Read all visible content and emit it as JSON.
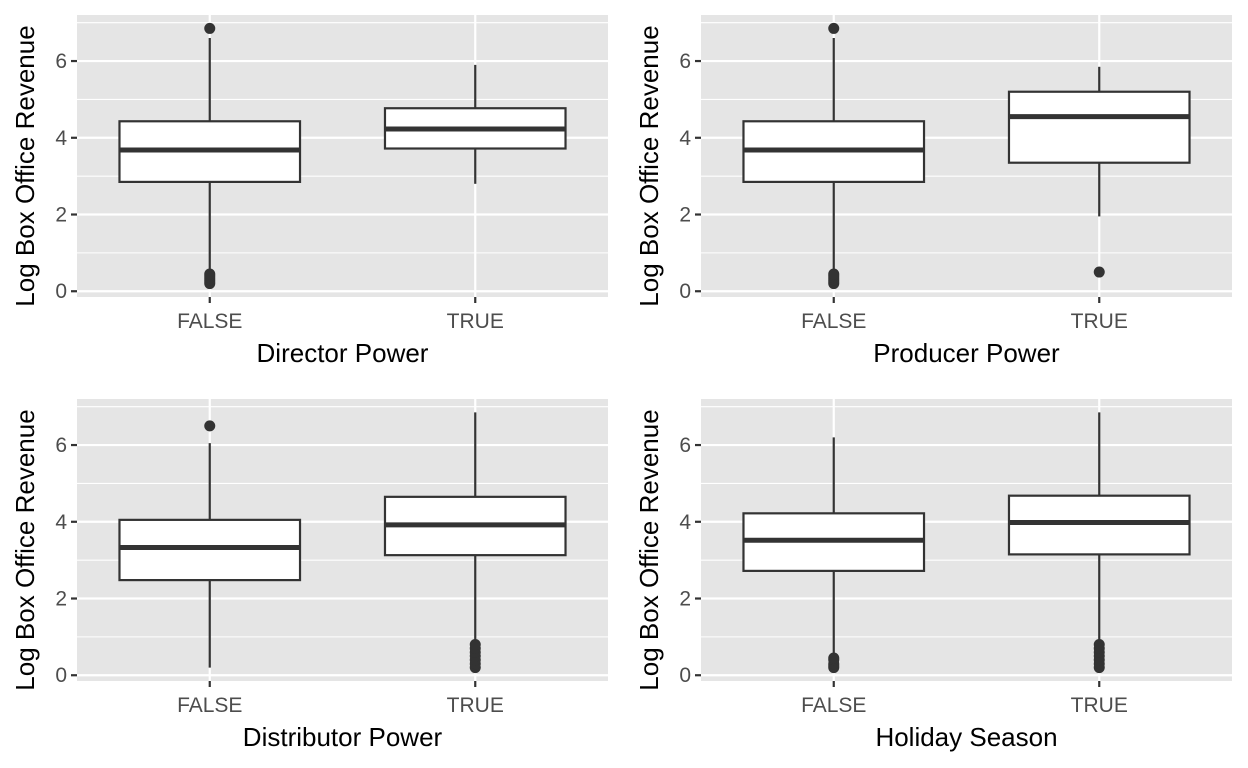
{
  "chart_data": [
    {
      "type": "box",
      "xlabel": "Director Power",
      "ylabel": "Log Box Office Revenue",
      "categories": [
        "FALSE",
        "TRUE"
      ],
      "ylim": [
        -0.15,
        7.2
      ],
      "yticks": [
        0,
        2,
        4,
        6
      ],
      "grid": true,
      "boxes": [
        {
          "category": "FALSE",
          "lower_whisker": 0.4,
          "q1": 2.85,
          "median": 3.68,
          "q3": 4.43,
          "upper_whisker": 6.6,
          "outliers": [
            6.85,
            0.2,
            0.25,
            0.3,
            0.35,
            0.4,
            0.45
          ]
        },
        {
          "category": "TRUE",
          "lower_whisker": 2.8,
          "q1": 3.72,
          "median": 4.23,
          "q3": 4.77,
          "upper_whisker": 5.9,
          "outliers": []
        }
      ]
    },
    {
      "type": "box",
      "xlabel": "Producer Power",
      "ylabel": "Log Box Office Revenue",
      "categories": [
        "FALSE",
        "TRUE"
      ],
      "ylim": [
        -0.15,
        7.2
      ],
      "yticks": [
        0,
        2,
        4,
        6
      ],
      "grid": true,
      "boxes": [
        {
          "category": "FALSE",
          "lower_whisker": 0.4,
          "q1": 2.85,
          "median": 3.68,
          "q3": 4.43,
          "upper_whisker": 6.6,
          "outliers": [
            6.85,
            0.2,
            0.25,
            0.3,
            0.35,
            0.4,
            0.45
          ]
        },
        {
          "category": "TRUE",
          "lower_whisker": 1.95,
          "q1": 3.35,
          "median": 4.55,
          "q3": 5.2,
          "upper_whisker": 5.85,
          "outliers": [
            0.5
          ]
        }
      ]
    },
    {
      "type": "box",
      "xlabel": "Distributor Power",
      "ylabel": "Log Box Office Revenue",
      "categories": [
        "FALSE",
        "TRUE"
      ],
      "ylim": [
        -0.15,
        7.2
      ],
      "yticks": [
        0,
        2,
        4,
        6
      ],
      "grid": true,
      "boxes": [
        {
          "category": "FALSE",
          "lower_whisker": 0.2,
          "q1": 2.48,
          "median": 3.33,
          "q3": 4.05,
          "upper_whisker": 6.05,
          "outliers": [
            6.5
          ]
        },
        {
          "category": "TRUE",
          "lower_whisker": 0.85,
          "q1": 3.13,
          "median": 3.92,
          "q3": 4.65,
          "upper_whisker": 6.85,
          "outliers": [
            0.2,
            0.3,
            0.4,
            0.5,
            0.6,
            0.7,
            0.8
          ]
        }
      ]
    },
    {
      "type": "box",
      "xlabel": "Holiday Season",
      "ylabel": "Log Box Office Revenue",
      "categories": [
        "FALSE",
        "TRUE"
      ],
      "ylim": [
        -0.15,
        7.2
      ],
      "yticks": [
        0,
        2,
        4,
        6
      ],
      "grid": true,
      "boxes": [
        {
          "category": "FALSE",
          "lower_whisker": 0.5,
          "q1": 2.72,
          "median": 3.52,
          "q3": 4.22,
          "upper_whisker": 6.2,
          "outliers": [
            0.2,
            0.25,
            0.3,
            0.4,
            0.45
          ]
        },
        {
          "category": "TRUE",
          "lower_whisker": 0.85,
          "q1": 3.15,
          "median": 3.98,
          "q3": 4.68,
          "upper_whisker": 6.85,
          "outliers": [
            0.2,
            0.3,
            0.4,
            0.5,
            0.6,
            0.7,
            0.8
          ]
        }
      ]
    }
  ]
}
